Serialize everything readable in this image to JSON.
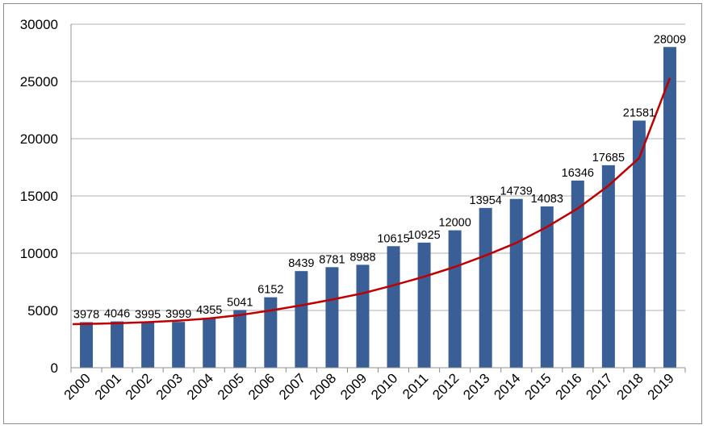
{
  "chart_data": {
    "type": "bar",
    "title": "",
    "xlabel": "",
    "ylabel": "",
    "categories": [
      "2000",
      "2001",
      "2002",
      "2003",
      "2004",
      "2005",
      "2006",
      "2007",
      "2008",
      "2009",
      "2010",
      "2011",
      "2012",
      "2013",
      "2014",
      "2015",
      "2016",
      "2017",
      "2018",
      "2019"
    ],
    "values": [
      3978,
      4046,
      3995,
      3999,
      4355,
      5041,
      6152,
      8439,
      8781,
      8988,
      10615,
      10925,
      12000,
      13954,
      14739,
      14083,
      16346,
      17685,
      21581,
      28009
    ],
    "ylim": [
      0,
      30000
    ],
    "yticks": [
      "0",
      "5000",
      "10000",
      "15000",
      "20000",
      "25000",
      "30000"
    ],
    "grid": true,
    "legend": "none",
    "trendline": {
      "type": "exponential",
      "color": "#c00000",
      "values": [
        3800,
        3880,
        3980,
        4110,
        4300,
        4600,
        5000,
        5450,
        5950,
        6500,
        7200,
        7950,
        8800,
        9800,
        10900,
        12300,
        13900,
        15900,
        18300,
        25300
      ]
    },
    "bar_color": "#3a5f96",
    "grid_color": "#b0b0b0"
  }
}
